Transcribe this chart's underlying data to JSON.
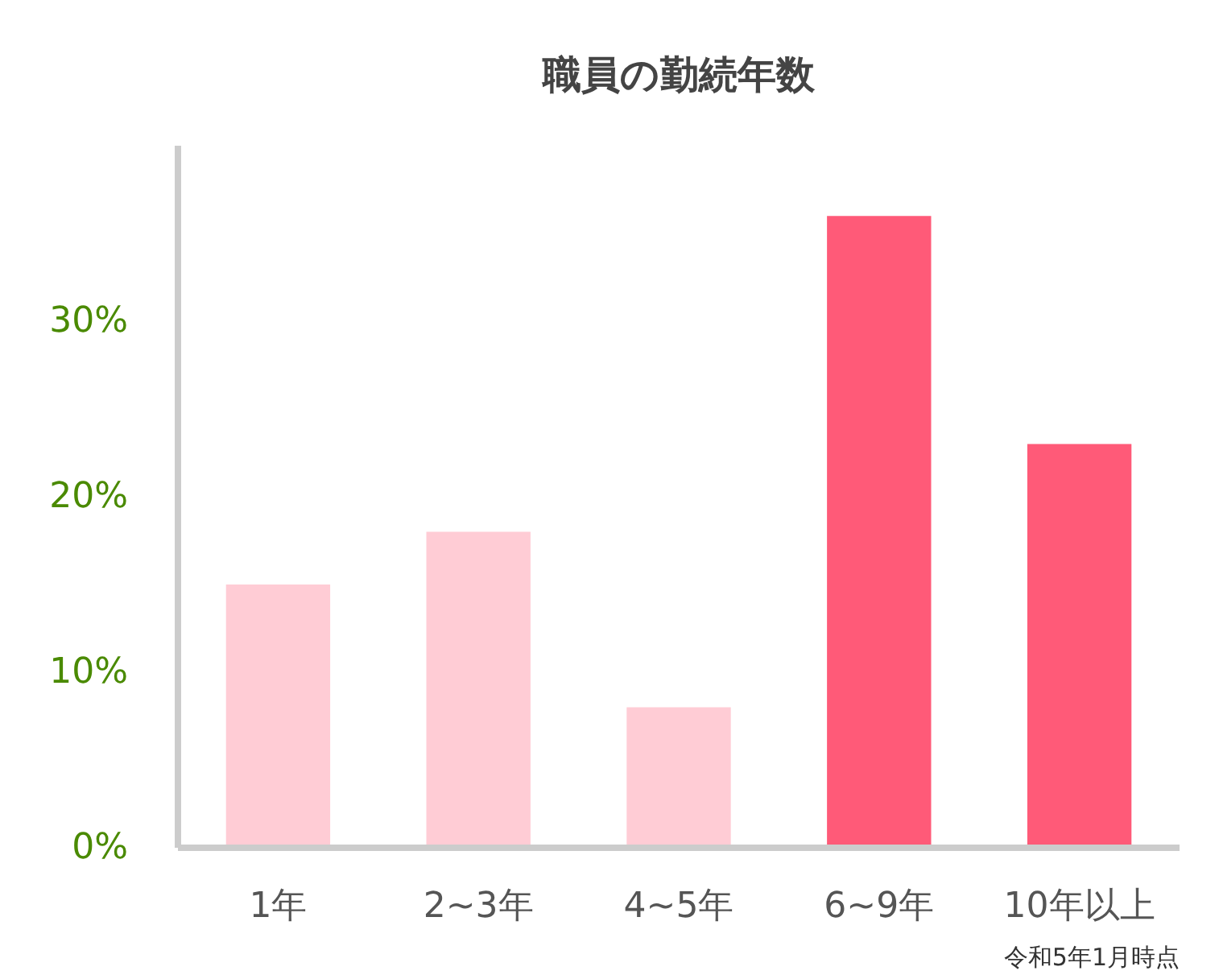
{
  "chart_data": {
    "type": "bar",
    "title": "職員の勤続年数",
    "categories": [
      "1年",
      "2~3年",
      "4~5年",
      "6~9年",
      "10年以上"
    ],
    "values": [
      15,
      18,
      8,
      36,
      23
    ],
    "colors": [
      "#ffccd5",
      "#ffccd5",
      "#ffccd5",
      "#ff5a78",
      "#ff5a78"
    ],
    "ylim": [
      0,
      40
    ],
    "yticks": [
      {
        "value": 0,
        "label": "0%"
      },
      {
        "value": 10,
        "label": "10%"
      },
      {
        "value": 20,
        "label": "20%"
      },
      {
        "value": 30,
        "label": "30%"
      }
    ],
    "grid": false,
    "annotations": [
      "令和5年1月時点"
    ]
  }
}
